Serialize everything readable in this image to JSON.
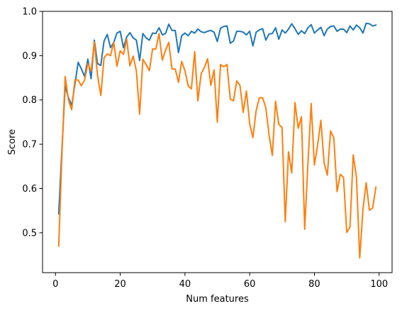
{
  "chart_data": {
    "type": "line",
    "title": "",
    "xlabel": "Num features",
    "ylabel": "Score",
    "xlim": [
      -4,
      104
    ],
    "ylim": [
      0.41,
      1.0
    ],
    "xticks": [
      0,
      20,
      40,
      60,
      80,
      100
    ],
    "yticks": [
      0.5,
      0.6,
      0.7,
      0.8,
      0.9,
      1.0
    ],
    "grid": false,
    "legend": "none",
    "x": [
      1,
      2,
      3,
      4,
      5,
      6,
      7,
      8,
      9,
      10,
      11,
      12,
      13,
      14,
      15,
      16,
      17,
      18,
      19,
      20,
      21,
      22,
      23,
      24,
      25,
      26,
      27,
      28,
      29,
      30,
      31,
      32,
      33,
      34,
      35,
      36,
      37,
      38,
      39,
      40,
      41,
      42,
      43,
      44,
      45,
      46,
      47,
      48,
      49,
      50,
      51,
      52,
      53,
      54,
      55,
      56,
      57,
      58,
      59,
      60,
      61,
      62,
      63,
      64,
      65,
      66,
      67,
      68,
      69,
      70,
      71,
      72,
      73,
      74,
      75,
      76,
      77,
      78,
      79,
      80,
      81,
      82,
      83,
      84,
      85,
      86,
      87,
      88,
      89,
      90,
      91,
      92,
      93,
      94,
      95,
      96,
      97,
      98,
      99
    ],
    "series": [
      {
        "color": "#1f77b4",
        "values": [
          0.543,
          0.69,
          0.832,
          0.805,
          0.788,
          0.835,
          0.885,
          0.87,
          0.853,
          0.892,
          0.848,
          0.935,
          0.882,
          0.878,
          0.933,
          0.948,
          0.918,
          0.93,
          0.951,
          0.955,
          0.918,
          0.942,
          0.952,
          0.94,
          0.935,
          0.889,
          0.95,
          0.94,
          0.935,
          0.951,
          0.95,
          0.963,
          0.947,
          0.95,
          0.971,
          0.957,
          0.957,
          0.907,
          0.945,
          0.951,
          0.945,
          0.955,
          0.951,
          0.96,
          0.954,
          0.952,
          0.955,
          0.957,
          0.953,
          0.932,
          0.962,
          0.966,
          0.967,
          0.928,
          0.933,
          0.955,
          0.955,
          0.953,
          0.947,
          0.955,
          0.922,
          0.953,
          0.958,
          0.961,
          0.935,
          0.949,
          0.95,
          0.963,
          0.937,
          0.958,
          0.951,
          0.96,
          0.972,
          0.961,
          0.948,
          0.956,
          0.95,
          0.963,
          0.97,
          0.951,
          0.958,
          0.964,
          0.945,
          0.96,
          0.966,
          0.967,
          0.955,
          0.96,
          0.96,
          0.952,
          0.967,
          0.958,
          0.969,
          0.963,
          0.951,
          0.973,
          0.972,
          0.967,
          0.969
        ]
      },
      {
        "color": "#ff7f0e",
        "values": [
          0.47,
          0.68,
          0.853,
          0.8,
          0.778,
          0.845,
          0.845,
          0.832,
          0.845,
          0.882,
          0.865,
          0.931,
          0.855,
          0.81,
          0.895,
          0.904,
          0.9,
          0.93,
          0.876,
          0.911,
          0.903,
          0.937,
          0.877,
          0.899,
          0.865,
          0.768,
          0.892,
          0.88,
          0.866,
          0.915,
          0.915,
          0.95,
          0.89,
          0.912,
          0.93,
          0.87,
          0.87,
          0.84,
          0.887,
          0.866,
          0.832,
          0.825,
          0.909,
          0.798,
          0.859,
          0.873,
          0.893,
          0.833,
          0.868,
          0.75,
          0.88,
          0.875,
          0.88,
          0.802,
          0.798,
          0.843,
          0.833,
          0.772,
          0.82,
          0.746,
          0.715,
          0.776,
          0.805,
          0.805,
          0.782,
          0.72,
          0.675,
          0.797,
          0.745,
          0.738,
          0.525,
          0.683,
          0.635,
          0.794,
          0.736,
          0.762,
          0.508,
          0.656,
          0.792,
          0.653,
          0.698,
          0.754,
          0.658,
          0.63,
          0.73,
          0.714,
          0.593,
          0.632,
          0.625,
          0.501,
          0.513,
          0.676,
          0.625,
          0.443,
          0.553,
          0.613,
          0.551,
          0.556,
          0.603
        ]
      }
    ]
  }
}
